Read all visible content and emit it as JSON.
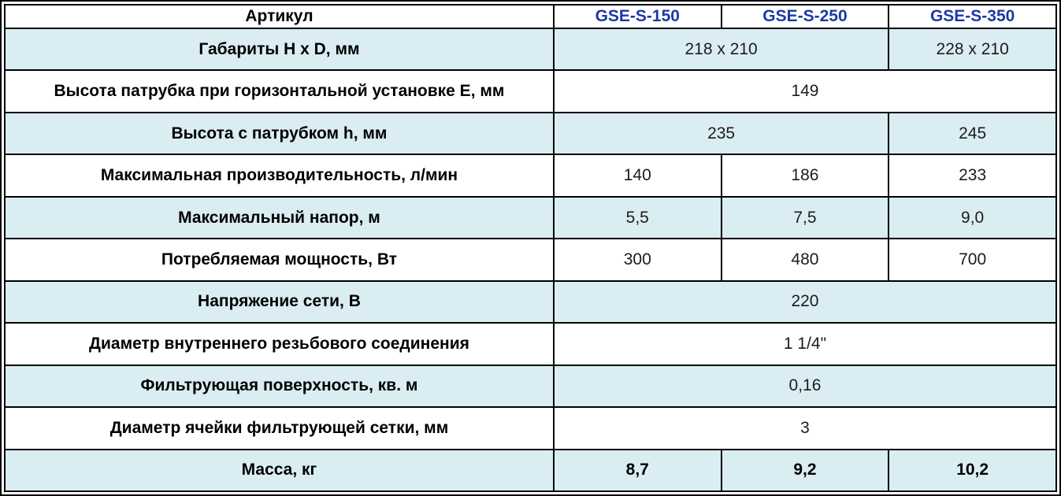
{
  "table": {
    "header": {
      "label": "Артикул",
      "columns": [
        "GSE-S-150",
        "GSE-S-250",
        "GSE-S-350"
      ]
    },
    "rows": [
      {
        "label": "Габариты H x D, мм",
        "cells": [
          {
            "text": "218 x 210",
            "span": 2
          },
          {
            "text": "228 x 210",
            "span": 1
          }
        ]
      },
      {
        "label": "Высота патрубка при горизонтальной установке E, мм",
        "cells": [
          {
            "text": "149",
            "span": 3
          }
        ]
      },
      {
        "label": "Высота с патрубком h, мм",
        "cells": [
          {
            "text": "235",
            "span": 2
          },
          {
            "text": "245",
            "span": 1
          }
        ]
      },
      {
        "label": "Максимальная производительность, л/мин",
        "cells": [
          {
            "text": "140",
            "span": 1
          },
          {
            "text": "186",
            "span": 1
          },
          {
            "text": "233",
            "span": 1
          }
        ]
      },
      {
        "label": "Максимальный напор, м",
        "cells": [
          {
            "text": "5,5",
            "span": 1
          },
          {
            "text": "7,5",
            "span": 1
          },
          {
            "text": "9,0",
            "span": 1
          }
        ]
      },
      {
        "label": "Потребляемая мощность, Вт",
        "cells": [
          {
            "text": "300",
            "span": 1
          },
          {
            "text": "480",
            "span": 1
          },
          {
            "text": "700",
            "span": 1
          }
        ]
      },
      {
        "label": "Напряжение сети, В",
        "cells": [
          {
            "text": "220",
            "span": 3
          }
        ]
      },
      {
        "label": "Диаметр внутреннего резьбового соединения",
        "cells": [
          {
            "text": "1 1/4\"",
            "span": 3
          }
        ]
      },
      {
        "label": "Фильтрующая поверхность, кв. м",
        "cells": [
          {
            "text": "0,16",
            "span": 3
          }
        ]
      },
      {
        "label": "Диаметр ячейки фильтрующей сетки, мм",
        "cells": [
          {
            "text": "3",
            "span": 3
          }
        ]
      },
      {
        "label": "Масса, кг",
        "bold": true,
        "cells": [
          {
            "text": "8,7",
            "span": 1
          },
          {
            "text": "9,2",
            "span": 1
          },
          {
            "text": "10,2",
            "span": 1
          }
        ]
      }
    ],
    "colors": {
      "row_alternate_fill": "#daedf3",
      "model_header_text": "#1c3aa5",
      "grid_border": "#000000"
    }
  }
}
